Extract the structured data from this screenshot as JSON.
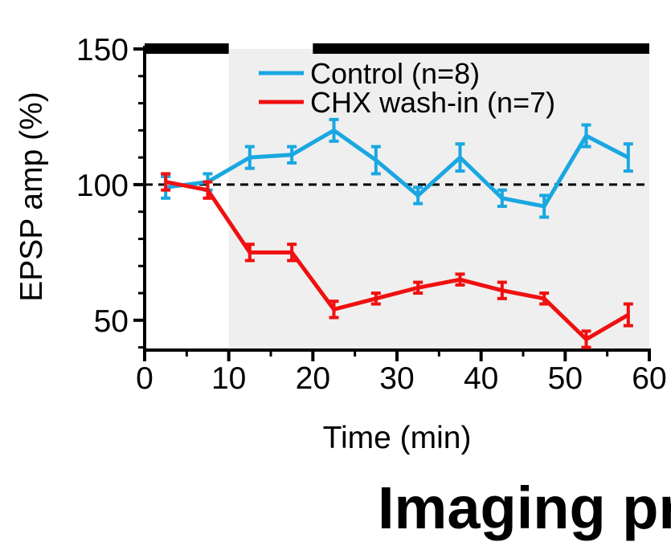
{
  "caption": "Imaging pr",
  "chart_data": {
    "type": "line",
    "xlabel": "Time (min)",
    "ylabel": "EPSP amp (%)",
    "xlim": [
      0,
      60
    ],
    "ylim": [
      39,
      150
    ],
    "x_ticks": [
      "0",
      "10",
      "20",
      "30",
      "40",
      "50",
      "60"
    ],
    "y_ticks": [
      "50",
      "100",
      "150"
    ],
    "legend_position": "top",
    "reference_line": {
      "y": 100,
      "style": "dashed"
    },
    "shaded_region": {
      "x": [
        10,
        60
      ],
      "color": "#efefef"
    },
    "bars": [
      {
        "x": [
          0,
          10
        ]
      },
      {
        "x": [
          20,
          60
        ]
      }
    ],
    "series": [
      {
        "name": "Control (n=8)",
        "color": "#1aa7e1",
        "x": [
          2.5,
          7.5,
          12.5,
          17.5,
          22.5,
          27.5,
          32.5,
          37.5,
          42.5,
          47.5,
          52.5,
          57.5
        ],
        "y": [
          99,
          101,
          110,
          111,
          120,
          109,
          96,
          110,
          95,
          92,
          118,
          110
        ],
        "err": [
          4,
          3,
          4,
          3,
          4,
          5,
          3,
          5,
          3,
          4,
          4,
          5
        ]
      },
      {
        "name": "CHX wash-in (n=7)",
        "color": "#f01010",
        "x": [
          2.5,
          7.5,
          12.5,
          17.5,
          22.5,
          27.5,
          32.5,
          37.5,
          42.5,
          47.5,
          52.5,
          57.5
        ],
        "y": [
          101,
          98,
          75,
          75,
          54,
          58,
          62,
          65,
          61,
          58,
          43,
          52
        ],
        "err": [
          3,
          3,
          3,
          3,
          3,
          2,
          2,
          2,
          3,
          2,
          3,
          4
        ]
      }
    ]
  }
}
